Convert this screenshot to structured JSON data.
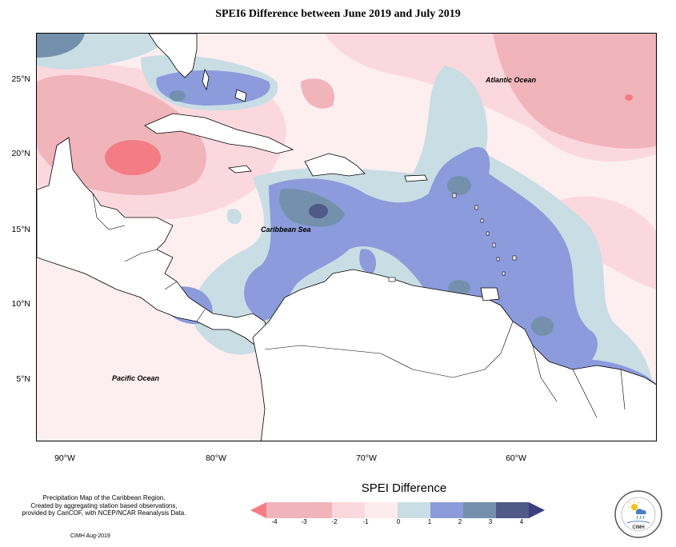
{
  "title": "SPEI6 Difference between June 2019 and July 2019",
  "map": {
    "lat_labels": [
      {
        "text": "25°N",
        "lat": 25
      },
      {
        "text": "20°N",
        "lat": 20
      },
      {
        "text": "15°N",
        "lat": 15
      },
      {
        "text": "10°N",
        "lat": 10
      },
      {
        "text": "5°N",
        "lat": 5
      }
    ],
    "lon_labels": [
      {
        "text": "90°W",
        "lon": -90
      },
      {
        "text": "80°W",
        "lon": -80
      },
      {
        "text": "70°W",
        "lon": -70
      },
      {
        "text": "60°W",
        "lon": -60
      }
    ],
    "extent": {
      "lon_min": -92,
      "lon_max": -52,
      "lat_min": 1.9,
      "lat_max": 27.5
    },
    "ocean_labels": [
      {
        "name": "atlantic",
        "text": "Atlantic Ocean"
      },
      {
        "name": "caribbean",
        "text": "Caribbean Sea"
      },
      {
        "name": "pacific",
        "text": "Pacific Ocean"
      }
    ]
  },
  "legend": {
    "title": "SPEI Difference",
    "ticks": [
      "-4",
      "-3",
      "-2",
      "-1",
      "0",
      "1",
      "2",
      "3",
      "4"
    ],
    "colors": [
      "#f47c85",
      "#f0b4ba",
      "#fbd8de",
      "#fdecee",
      "#c9dde4",
      "#8b9bdb",
      "#7590ad",
      "#4f5a88"
    ]
  },
  "credits": {
    "lines": [
      "Precipitation Map of the Caribbean Region.",
      "Created by aggregating station based observations,",
      "provided by CariCOF, with NCEP/NCAR Reanalysis Data."
    ],
    "date": "CIMH Aug-2019"
  },
  "logo": {
    "text": "CIMH",
    "icon": "cimh-logo-icon"
  }
}
